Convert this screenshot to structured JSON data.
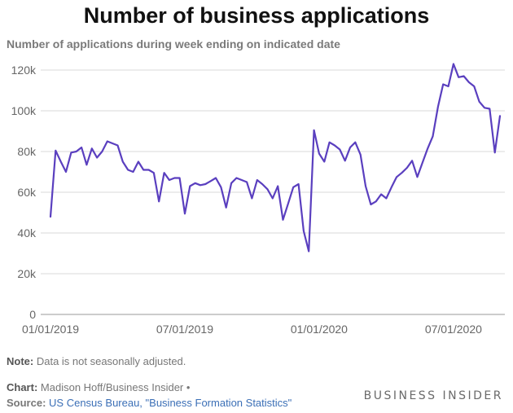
{
  "header": {
    "title": "Number of business applications",
    "subtitle": "Number of applications during week ending on indicated date"
  },
  "footer": {
    "note_label": "Note:",
    "note_text": "Data is not seasonally adjusted.",
    "chart_label": "Chart:",
    "chart_credit": "Madison Hoff/Business Insider •",
    "source_label": "Source:",
    "source_text": "US Census Bureau, \"Business Formation Statistics\"",
    "brand": "BUSINESS INSIDER"
  },
  "colors": {
    "line": "#5a3fbf",
    "grid": "#d9d9d9",
    "axis_text": "#666666"
  },
  "chart_data": {
    "type": "line",
    "title": "Number of business applications",
    "subtitle": "Number of applications during week ending on indicated date",
    "xlabel": "",
    "ylabel": "",
    "ylim": [
      0,
      120000
    ],
    "y_ticks": [
      0,
      20000,
      40000,
      60000,
      80000,
      100000,
      120000
    ],
    "y_tick_labels": [
      "0",
      "20k",
      "40k",
      "60k",
      "80k",
      "100k",
      "120k"
    ],
    "x_tick_labels": [
      "01/01/2019",
      "07/01/2019",
      "01/01/2020",
      "07/01/2020"
    ],
    "x_tick_weeks": [
      0,
      26,
      52,
      78
    ],
    "grid": true,
    "series": [
      {
        "name": "Business applications",
        "x_week_start": 0,
        "values": [
          48000,
          80500,
          75000,
          70000,
          79500,
          80000,
          82000,
          73500,
          81500,
          77000,
          80000,
          85000,
          84000,
          83000,
          75000,
          71000,
          70000,
          75000,
          71000,
          71000,
          69500,
          55500,
          69500,
          66000,
          67000,
          67000,
          49500,
          63000,
          64500,
          63500,
          64000,
          65500,
          67000,
          62500,
          52500,
          64500,
          67000,
          66000,
          65000,
          57000,
          66000,
          64000,
          61500,
          57000,
          63000,
          46500,
          54500,
          62500,
          64000,
          41000,
          31000,
          90500,
          79000,
          75000,
          84500,
          83000,
          81000,
          75500,
          82000,
          84500,
          78500,
          63000,
          54000,
          55500,
          59000,
          57000,
          62500,
          67500,
          69500,
          72000,
          75500,
          67500,
          74500,
          81500,
          87500,
          102000,
          113000,
          112000,
          123000,
          116500,
          117000,
          114000,
          112000,
          104500,
          101500,
          101000,
          79500,
          97500
        ]
      }
    ]
  }
}
